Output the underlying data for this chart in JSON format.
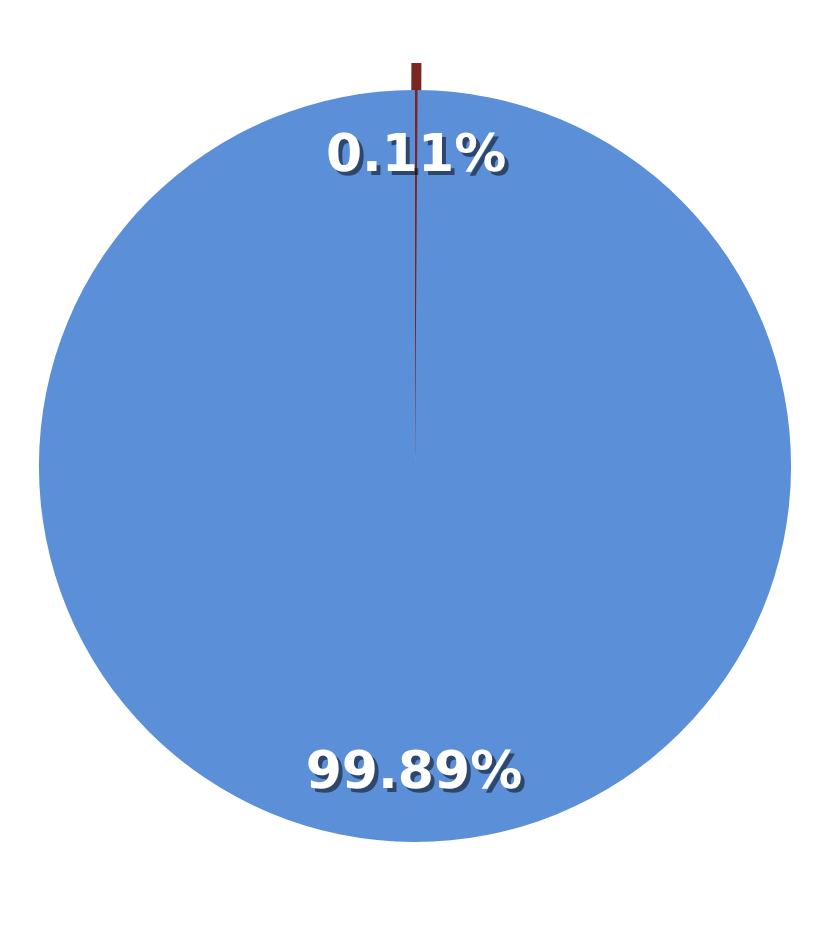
{
  "chart_data": {
    "type": "pie",
    "categories": [
      null,
      null
    ],
    "values": [
      0.11,
      99.89
    ],
    "colors": [
      "#7a2723",
      "#5b8fd8"
    ],
    "value_labels": [
      "0.11%",
      "99.89%"
    ],
    "legend": false
  }
}
